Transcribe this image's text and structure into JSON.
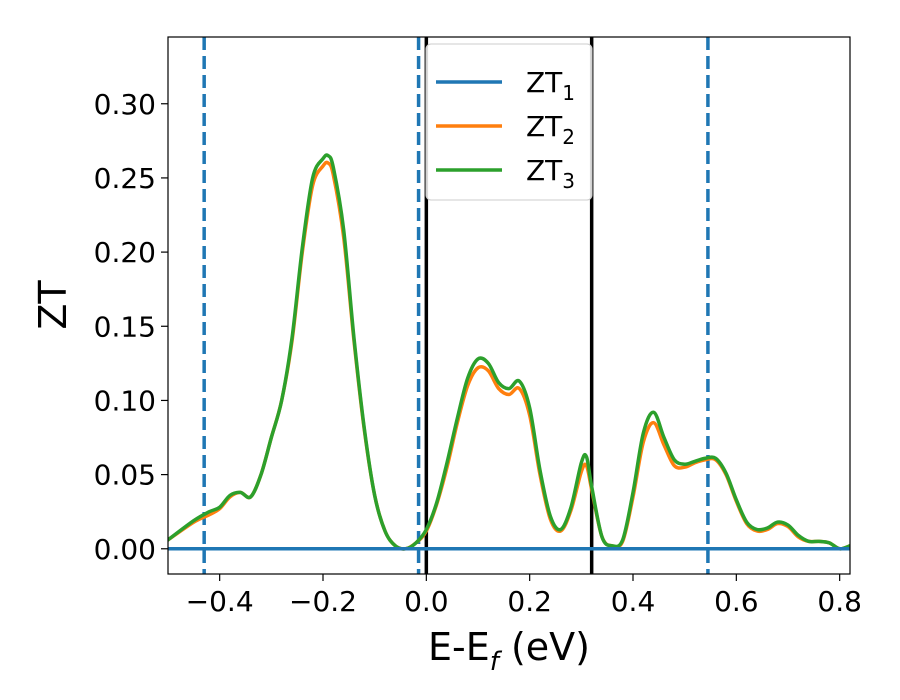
{
  "chart_data": {
    "type": "line",
    "title": "",
    "xlabel_main": "E-E",
    "xlabel_sub": "f",
    "xlabel_unit": " (eV)",
    "ylabel": "ZT",
    "xlim": [
      -0.5,
      0.82
    ],
    "ylim": [
      -0.017,
      0.345
    ],
    "x_ticks": [
      -0.4,
      -0.2,
      0.0,
      0.2,
      0.4,
      0.6,
      0.8
    ],
    "x_tick_labels": [
      "−0.4",
      "−0.2",
      "0.0",
      "0.2",
      "0.4",
      "0.6",
      "0.8"
    ],
    "y_ticks": [
      0.0,
      0.05,
      0.1,
      0.15,
      0.2,
      0.25,
      0.3
    ],
    "y_tick_labels": [
      "0.00",
      "0.05",
      "0.10",
      "0.15",
      "0.20",
      "0.25",
      "0.30"
    ],
    "grid": false,
    "legend_position": "top-center",
    "vlines_dashed": {
      "color": "#1f77b4",
      "x": [
        -0.43,
        -0.015,
        0.545
      ]
    },
    "vlines_solid": {
      "color": "#000000",
      "x": [
        0.0,
        0.32
      ]
    },
    "series": [
      {
        "name": "ZT",
        "subscript": "1",
        "color": "#1f77b4",
        "x": [
          -0.5,
          0.82
        ],
        "y": [
          0.0,
          0.0
        ]
      },
      {
        "name": "ZT",
        "subscript": "2",
        "color": "#ff7f0e",
        "x": [
          -0.5,
          -0.45,
          -0.42,
          -0.4,
          -0.38,
          -0.36,
          -0.34,
          -0.32,
          -0.3,
          -0.28,
          -0.26,
          -0.24,
          -0.22,
          -0.2,
          -0.19,
          -0.18,
          -0.16,
          -0.14,
          -0.12,
          -0.1,
          -0.08,
          -0.06,
          -0.04,
          -0.02,
          0.0,
          0.02,
          0.04,
          0.06,
          0.08,
          0.1,
          0.12,
          0.14,
          0.16,
          0.18,
          0.2,
          0.22,
          0.24,
          0.26,
          0.28,
          0.3,
          0.31,
          0.32,
          0.34,
          0.36,
          0.38,
          0.4,
          0.42,
          0.44,
          0.46,
          0.48,
          0.5,
          0.52,
          0.54,
          0.56,
          0.58,
          0.6,
          0.62,
          0.64,
          0.66,
          0.68,
          0.7,
          0.72,
          0.74,
          0.76,
          0.78,
          0.8,
          0.82
        ],
        "y": [
          0.006,
          0.018,
          0.023,
          0.027,
          0.035,
          0.038,
          0.035,
          0.05,
          0.075,
          0.1,
          0.14,
          0.2,
          0.245,
          0.258,
          0.26,
          0.252,
          0.21,
          0.14,
          0.08,
          0.036,
          0.012,
          0.002,
          0.0,
          0.004,
          0.012,
          0.03,
          0.055,
          0.085,
          0.11,
          0.122,
          0.12,
          0.108,
          0.104,
          0.108,
          0.09,
          0.05,
          0.02,
          0.012,
          0.026,
          0.052,
          0.056,
          0.04,
          0.008,
          0.002,
          0.005,
          0.035,
          0.072,
          0.085,
          0.07,
          0.056,
          0.055,
          0.058,
          0.06,
          0.06,
          0.05,
          0.032,
          0.017,
          0.012,
          0.013,
          0.017,
          0.015,
          0.008,
          0.005,
          0.005,
          0.004,
          0.0,
          0.002
        ]
      },
      {
        "name": "ZT",
        "subscript": "3",
        "color": "#2ca02c",
        "x": [
          -0.5,
          -0.45,
          -0.42,
          -0.4,
          -0.38,
          -0.36,
          -0.34,
          -0.32,
          -0.3,
          -0.28,
          -0.26,
          -0.24,
          -0.22,
          -0.2,
          -0.19,
          -0.18,
          -0.16,
          -0.14,
          -0.12,
          -0.1,
          -0.08,
          -0.06,
          -0.04,
          -0.02,
          0.0,
          0.02,
          0.04,
          0.06,
          0.08,
          0.1,
          0.12,
          0.14,
          0.16,
          0.18,
          0.2,
          0.22,
          0.24,
          0.26,
          0.28,
          0.3,
          0.31,
          0.32,
          0.34,
          0.36,
          0.38,
          0.4,
          0.42,
          0.44,
          0.46,
          0.48,
          0.5,
          0.52,
          0.54,
          0.56,
          0.58,
          0.6,
          0.62,
          0.64,
          0.66,
          0.68,
          0.7,
          0.72,
          0.74,
          0.76,
          0.78,
          0.8,
          0.82
        ],
        "y": [
          0.006,
          0.019,
          0.025,
          0.028,
          0.036,
          0.038,
          0.035,
          0.05,
          0.075,
          0.1,
          0.142,
          0.203,
          0.25,
          0.263,
          0.265,
          0.257,
          0.215,
          0.142,
          0.081,
          0.036,
          0.012,
          0.002,
          0.0,
          0.004,
          0.013,
          0.031,
          0.058,
          0.088,
          0.115,
          0.128,
          0.125,
          0.112,
          0.108,
          0.113,
          0.095,
          0.053,
          0.022,
          0.013,
          0.028,
          0.058,
          0.062,
          0.042,
          0.008,
          0.002,
          0.006,
          0.038,
          0.078,
          0.092,
          0.075,
          0.06,
          0.057,
          0.059,
          0.061,
          0.061,
          0.051,
          0.033,
          0.018,
          0.013,
          0.014,
          0.018,
          0.016,
          0.009,
          0.005,
          0.005,
          0.004,
          0.0,
          0.002
        ]
      }
    ]
  }
}
